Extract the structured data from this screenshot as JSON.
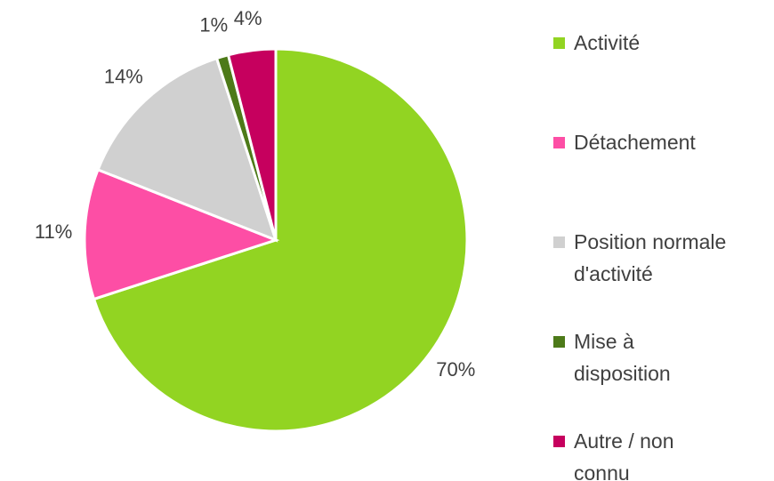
{
  "chart_data": {
    "type": "pie",
    "categories": [
      "Activité",
      "Détachement",
      "Position normale d'activité",
      "Mise à disposition",
      "Autre / non connu"
    ],
    "values": [
      70,
      11,
      14,
      1,
      4
    ],
    "value_labels": [
      "70%",
      "11%",
      "14%",
      "1%",
      "4%"
    ],
    "colors": [
      "#92d422",
      "#fd4ea5",
      "#d0d0d0",
      "#4d7a19",
      "#c6005e"
    ],
    "legend": "right"
  }
}
